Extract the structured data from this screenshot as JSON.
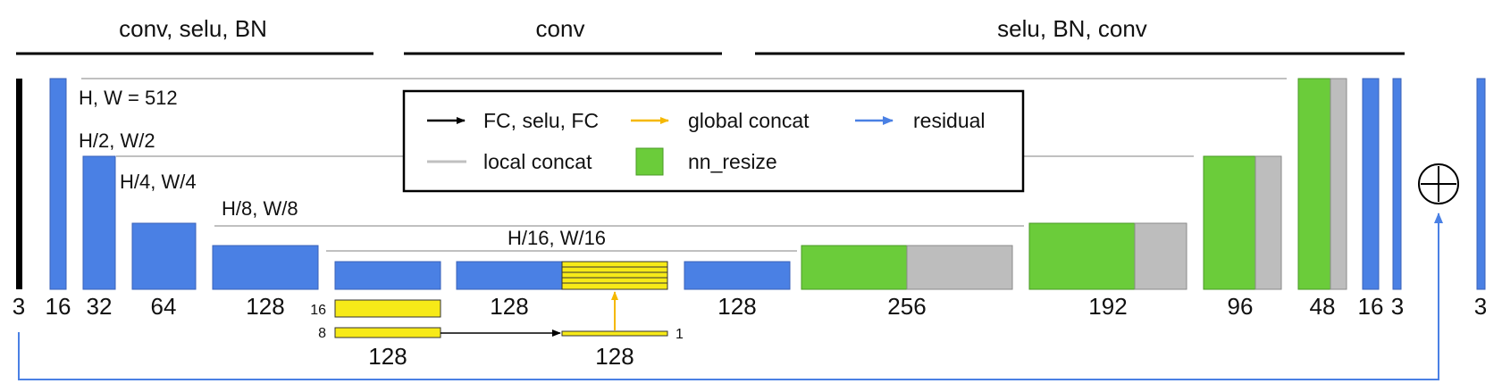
{
  "sections": {
    "encoder": "conv, selu, BN",
    "middle": "conv",
    "decoder": "selu, BN, conv"
  },
  "resolutions": {
    "r1": "H, W = 512",
    "r2": "H/2, W/2",
    "r4": "H/4, W/4",
    "r8": "H/8, W/8",
    "r16": "H/16, W/16"
  },
  "channels": {
    "input": "3",
    "e1": "16",
    "e2": "32",
    "e3": "64",
    "e4": "128",
    "m1": "128",
    "m2": "128",
    "d1": "256",
    "d2": "192",
    "d3": "96",
    "d4": "48",
    "d5": "16",
    "d6": "3",
    "output": "3"
  },
  "global_branch": {
    "res16": "16",
    "res8": "8",
    "res1": "1",
    "ch_left": "128",
    "ch_right": "128"
  },
  "legend": {
    "fc": "FC, selu, FC",
    "global_concat": "global concat",
    "residual": "residual",
    "local_concat": "local concat",
    "nn_resize": "nn_resize"
  },
  "colors": {
    "conv_block": "#4a80e4",
    "resize_block": "#6bcc3a",
    "concat_block": "#bdbdbd",
    "global_block": "#f7ea18",
    "global_arrow": "#f5b800",
    "residual_arrow": "#4a80e4",
    "skip_line": "#c0c0c0",
    "black": "#000000"
  }
}
